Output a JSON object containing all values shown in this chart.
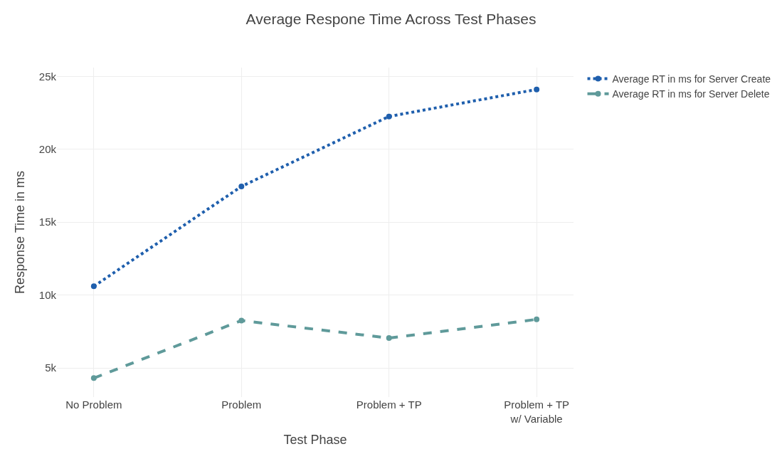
{
  "chart_data": {
    "type": "line",
    "title": "Average Respone Time Across Test Phases",
    "xlabel": "Test Phase",
    "ylabel": "Response Time in ms",
    "categories": [
      "No Problem",
      "Problem",
      "Problem + TP",
      "Problem + TP\nw/ Variable"
    ],
    "series": [
      {
        "name": "Average RT in ms for Server Create",
        "color": "#1f5fad",
        "line_style": "dotted",
        "values": [
          10600,
          17450,
          22250,
          24100
        ]
      },
      {
        "name": "Average RT in ms for Server Delete",
        "color": "#5f9a9a",
        "line_style": "dashed",
        "values": [
          4300,
          8250,
          7050,
          8330
        ]
      }
    ],
    "ylim": [
      3000,
      25600
    ],
    "yticks": [
      {
        "value": 5000,
        "label": "5k"
      },
      {
        "value": 10000,
        "label": "10k"
      },
      {
        "value": 15000,
        "label": "15k"
      },
      {
        "value": 20000,
        "label": "20k"
      },
      {
        "value": 25000,
        "label": "25k"
      }
    ],
    "grid": true,
    "legend": "top right",
    "marker": "circle"
  }
}
